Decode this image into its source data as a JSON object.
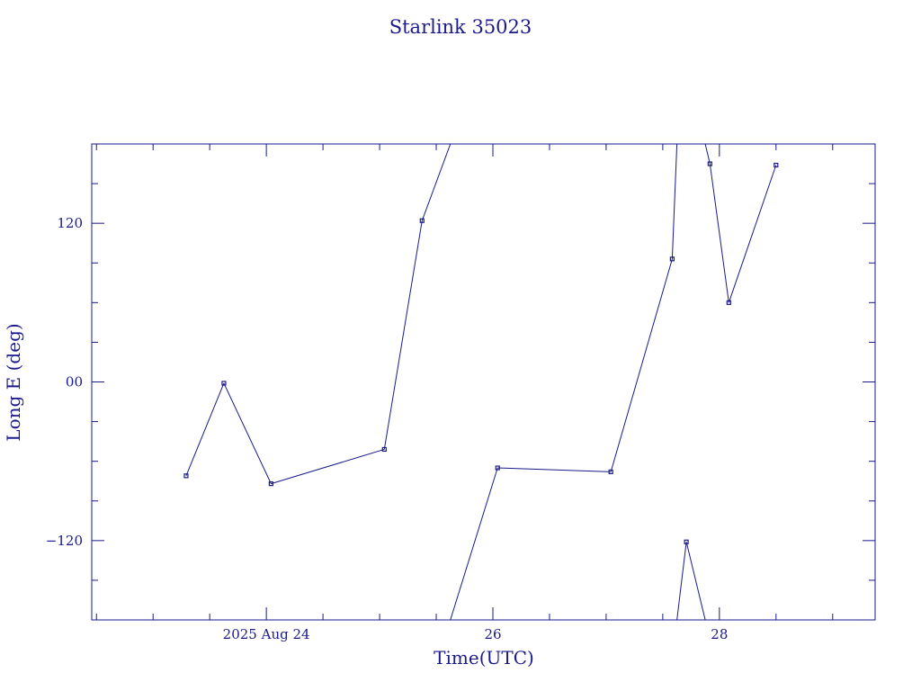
{
  "chart_data": {
    "type": "line",
    "title": "Starlink 35023",
    "xlabel": "Time(UTC)",
    "ylabel": "Long E (deg)",
    "x_unit": "days",
    "xlim": [
      "2025-08-22T11:00",
      "2025-08-29T09:00"
    ],
    "ylim": [
      -180,
      180
    ],
    "y_ticks": [
      120,
      0,
      -120
    ],
    "y_tick_labels": [
      "120",
      "00",
      "−120"
    ],
    "x_ticks": [
      "2025-08-24T00:00",
      "2025-08-26T00:00",
      "2025-08-28T00:00"
    ],
    "x_tick_labels": [
      "2025 Aug 24",
      "26",
      "28"
    ],
    "grid": false,
    "points": [
      {
        "t": "2025-08-23T07:00",
        "lon": -71
      },
      {
        "t": "2025-08-23T15:00",
        "lon": -1
      },
      {
        "t": "2025-08-24T01:00",
        "lon": -77
      },
      {
        "t": "2025-08-25T01:00",
        "lon": -51
      },
      {
        "t": "2025-08-25T09:00",
        "lon": 122
      },
      {
        "t": "2025-08-26T01:00",
        "lon": -65
      },
      {
        "t": "2025-08-27T01:00",
        "lon": -68
      },
      {
        "t": "2025-08-27T14:00",
        "lon": 93
      },
      {
        "t": "2025-08-27T17:00",
        "lon": -121
      },
      {
        "t": "2025-08-27T22:00",
        "lon": 165
      },
      {
        "t": "2025-08-28T02:00",
        "lon": 60
      },
      {
        "t": "2025-08-28T12:00",
        "lon": 164
      }
    ],
    "segments": [
      [
        [
          "2025-08-23T07:00",
          -71
        ],
        [
          "2025-08-23T15:00",
          -1
        ]
      ],
      [
        [
          "2025-08-23T15:00",
          -1
        ],
        [
          "2025-08-24T01:00",
          -77
        ]
      ],
      [
        [
          "2025-08-24T01:00",
          -77
        ],
        [
          "2025-08-25T01:00",
          -51
        ]
      ],
      [
        [
          "2025-08-25T01:00",
          -51
        ],
        [
          "2025-08-25T09:00",
          122
        ]
      ],
      [
        [
          "2025-08-25T09:00",
          122
        ],
        [
          "2025-08-25T15:00",
          180
        ]
      ],
      [
        [
          "2025-08-25T15:00",
          -180
        ],
        [
          "2025-08-26T01:00",
          -65
        ]
      ],
      [
        [
          "2025-08-26T01:00",
          -65
        ],
        [
          "2025-08-27T01:00",
          -68
        ]
      ],
      [
        [
          "2025-08-27T01:00",
          -68
        ],
        [
          "2025-08-27T14:00",
          93
        ]
      ],
      [
        [
          "2025-08-27T14:00",
          93
        ],
        [
          "2025-08-27T15:00",
          180
        ]
      ],
      [
        [
          "2025-08-27T15:00",
          -180
        ],
        [
          "2025-08-27T17:00",
          -121
        ]
      ],
      [
        [
          "2025-08-27T17:00",
          -121
        ],
        [
          "2025-08-27T21:00",
          -180
        ]
      ],
      [
        [
          "2025-08-27T21:00",
          180
        ],
        [
          "2025-08-27T22:00",
          165
        ]
      ],
      [
        [
          "2025-08-27T22:00",
          165
        ],
        [
          "2025-08-28T02:00",
          60
        ]
      ],
      [
        [
          "2025-08-28T02:00",
          60
        ],
        [
          "2025-08-28T12:00",
          164
        ]
      ]
    ],
    "colors": {
      "axis": "#1a1a8c",
      "series": "#1a1a8c",
      "background": "#ffffff"
    }
  }
}
